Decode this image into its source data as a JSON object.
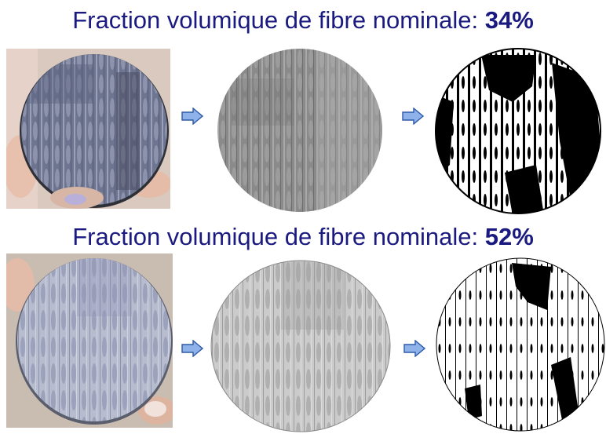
{
  "rows": [
    {
      "title_prefix": "Fraction volumique de fibre nominale: ",
      "title_value": "34%",
      "stages": [
        "photo",
        "grayscale",
        "binary"
      ]
    },
    {
      "title_prefix": "Fraction volumique de fibre nominale: ",
      "title_value": "52%",
      "stages": [
        "photo",
        "grayscale",
        "binary"
      ]
    }
  ],
  "colors": {
    "title": "#1a1a80",
    "arrow_fill": "#8fb2ea",
    "arrow_stroke": "#2e5aa8"
  }
}
